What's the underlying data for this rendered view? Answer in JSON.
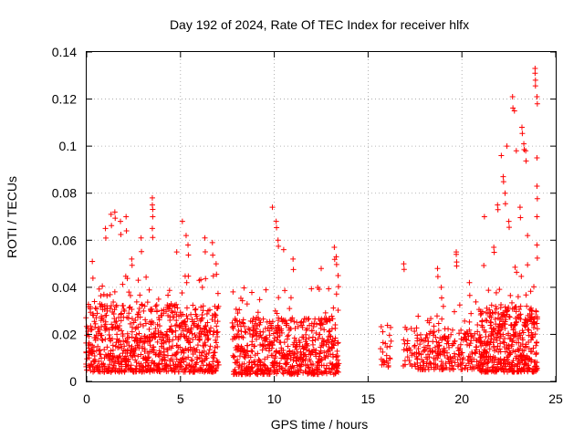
{
  "chart_data": {
    "type": "scatter",
    "title": "Day 192 of 2024, Rate Of TEC Index for receiver hlfx",
    "xlabel": "GPS time / hours",
    "ylabel": "ROTI / TECUs",
    "xlim": [
      0,
      25
    ],
    "ylim": [
      0,
      0.14
    ],
    "grid": true,
    "marker": "plus",
    "series_color": "#ff0000",
    "x_ticks": [
      {
        "value": 0,
        "label": "0"
      },
      {
        "value": 5,
        "label": "5"
      },
      {
        "value": 10,
        "label": "10"
      },
      {
        "value": 15,
        "label": "15"
      },
      {
        "value": 20,
        "label": "20"
      },
      {
        "value": 25,
        "label": "25"
      }
    ],
    "y_ticks": [
      {
        "value": 0,
        "label": "0"
      },
      {
        "value": 0.02,
        "label": "0.02"
      },
      {
        "value": 0.04,
        "label": "0.04"
      },
      {
        "value": 0.06,
        "label": "0.06"
      },
      {
        "value": 0.08,
        "label": "0.08"
      },
      {
        "value": 0.1,
        "label": "0.1"
      },
      {
        "value": 0.12,
        "label": "0.12"
      },
      {
        "value": 0.14,
        "label": "0.14"
      }
    ],
    "dense_bands": [
      {
        "x_start": 0.0,
        "x_end": 7.0,
        "y_min": 0.004,
        "y_max": 0.033,
        "peak_max": 0.045,
        "density": 40
      },
      {
        "x_start": 7.8,
        "x_end": 13.4,
        "y_min": 0.003,
        "y_max": 0.027,
        "peak_max": 0.04,
        "density": 34
      },
      {
        "x_start": 15.7,
        "x_end": 16.2,
        "y_min": 0.006,
        "y_max": 0.02,
        "peak_max": 0.024,
        "density": 10
      },
      {
        "x_start": 16.9,
        "x_end": 17.3,
        "y_min": 0.006,
        "y_max": 0.018,
        "peak_max": 0.028,
        "density": 10
      },
      {
        "x_start": 17.5,
        "x_end": 19.6,
        "y_min": 0.005,
        "y_max": 0.022,
        "peak_max": 0.032,
        "density": 22
      },
      {
        "x_start": 19.8,
        "x_end": 21.0,
        "y_min": 0.005,
        "y_max": 0.022,
        "peak_max": 0.035,
        "density": 22
      },
      {
        "x_start": 21.0,
        "x_end": 24.0,
        "y_min": 0.004,
        "y_max": 0.032,
        "peak_max": 0.05,
        "density": 46
      }
    ],
    "highlight_points": [
      {
        "x": 0.3,
        "y": 0.051
      },
      {
        "x": 1.0,
        "y": 0.065
      },
      {
        "x": 1.3,
        "y": 0.071
      },
      {
        "x": 1.5,
        "y": 0.072
      },
      {
        "x": 1.8,
        "y": 0.068
      },
      {
        "x": 2.1,
        "y": 0.07
      },
      {
        "x": 2.4,
        "y": 0.052
      },
      {
        "x": 2.9,
        "y": 0.061
      },
      {
        "x": 3.5,
        "y": 0.078
      },
      {
        "x": 3.5,
        "y": 0.075
      },
      {
        "x": 3.5,
        "y": 0.065
      },
      {
        "x": 4.8,
        "y": 0.055
      },
      {
        "x": 5.1,
        "y": 0.068
      },
      {
        "x": 5.3,
        "y": 0.062
      },
      {
        "x": 5.4,
        "y": 0.058
      },
      {
        "x": 6.3,
        "y": 0.061
      },
      {
        "x": 6.7,
        "y": 0.059
      },
      {
        "x": 6.9,
        "y": 0.05
      },
      {
        "x": 9.9,
        "y": 0.074
      },
      {
        "x": 10.1,
        "y": 0.068
      },
      {
        "x": 10.2,
        "y": 0.06
      },
      {
        "x": 10.5,
        "y": 0.056
      },
      {
        "x": 11.0,
        "y": 0.052
      },
      {
        "x": 12.5,
        "y": 0.048
      },
      {
        "x": 13.2,
        "y": 0.057
      },
      {
        "x": 13.3,
        "y": 0.053
      },
      {
        "x": 13.4,
        "y": 0.045
      },
      {
        "x": 16.9,
        "y": 0.05
      },
      {
        "x": 18.7,
        "y": 0.048
      },
      {
        "x": 18.9,
        "y": 0.04
      },
      {
        "x": 19.7,
        "y": 0.055
      },
      {
        "x": 19.7,
        "y": 0.054
      },
      {
        "x": 20.4,
        "y": 0.042
      },
      {
        "x": 21.2,
        "y": 0.07
      },
      {
        "x": 21.7,
        "y": 0.057
      },
      {
        "x": 21.9,
        "y": 0.075
      },
      {
        "x": 22.1,
        "y": 0.096
      },
      {
        "x": 22.2,
        "y": 0.087
      },
      {
        "x": 22.3,
        "y": 0.08
      },
      {
        "x": 22.4,
        "y": 0.1
      },
      {
        "x": 22.5,
        "y": 0.068
      },
      {
        "x": 22.7,
        "y": 0.121
      },
      {
        "x": 22.8,
        "y": 0.115
      },
      {
        "x": 22.9,
        "y": 0.098
      },
      {
        "x": 23.1,
        "y": 0.074
      },
      {
        "x": 23.2,
        "y": 0.108
      },
      {
        "x": 23.3,
        "y": 0.101
      },
      {
        "x": 23.4,
        "y": 0.098
      },
      {
        "x": 23.5,
        "y": 0.062
      },
      {
        "x": 23.9,
        "y": 0.133
      },
      {
        "x": 23.9,
        "y": 0.131
      },
      {
        "x": 24.0,
        "y": 0.121
      },
      {
        "x": 24.0,
        "y": 0.095
      },
      {
        "x": 24.0,
        "y": 0.083
      },
      {
        "x": 24.0,
        "y": 0.07
      },
      {
        "x": 24.0,
        "y": 0.058
      }
    ]
  }
}
